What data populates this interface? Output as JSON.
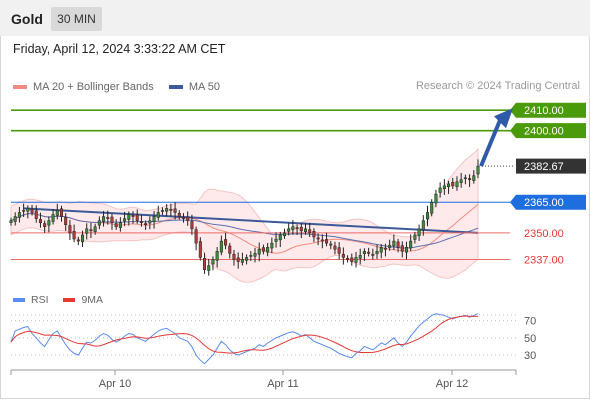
{
  "header": {
    "symbol": "Gold",
    "timeframe": "30 MIN"
  },
  "datetime": "Friday, April 12, 2024 3:33:22 AM CET",
  "legend": [
    {
      "label": "MA 20 + Bollinger Bands",
      "color": "#f28b82"
    },
    {
      "label": "MA 50",
      "color": "#3b5998"
    }
  ],
  "credit": "Research © 2024 Trading Central",
  "rsi_legend": [
    {
      "label": "RSI",
      "color": "#5b8def"
    },
    {
      "label": "9MA",
      "color": "#e53935"
    }
  ],
  "levels": [
    {
      "value": 2410.0,
      "label": "2410.00",
      "style": "resistance",
      "color": "#4a9a0a"
    },
    {
      "value": 2400.0,
      "label": "2400.00",
      "style": "resistance",
      "color": "#4a9a0a"
    },
    {
      "value": 2382.67,
      "label": "2382.67",
      "style": "last",
      "color": "#333333"
    },
    {
      "value": 2365.0,
      "label": "2365.00",
      "style": "pivot",
      "color": "#1e6ee0"
    },
    {
      "value": 2350.0,
      "label": "2350.00",
      "style": "support",
      "color": "#e53935"
    },
    {
      "value": 2337.0,
      "label": "2337.00",
      "style": "support",
      "color": "#e53935"
    }
  ],
  "chart_data": {
    "type": "candlestick",
    "price_range": [
      2326,
      2415
    ],
    "x_labels": [
      "Apr 10",
      "Apr 11",
      "Apr 12"
    ],
    "close": [
      2356,
      2358,
      2360,
      2361,
      2362,
      2360,
      2357,
      2355,
      2353,
      2356,
      2359,
      2361,
      2358,
      2354,
      2350,
      2347,
      2346,
      2349,
      2352,
      2351,
      2353,
      2356,
      2358,
      2357,
      2355,
      2353,
      2355,
      2357,
      2359,
      2358,
      2356,
      2355,
      2354,
      2356,
      2358,
      2360,
      2361,
      2362,
      2361,
      2360,
      2358,
      2357,
      2356,
      2352,
      2345,
      2338,
      2332,
      2334,
      2337,
      2341,
      2346,
      2344,
      2340,
      2337,
      2336,
      2337,
      2338,
      2339,
      2340,
      2342,
      2341,
      2343,
      2345,
      2347,
      2349,
      2350,
      2352,
      2353,
      2352,
      2351,
      2352,
      2350,
      2348,
      2347,
      2346,
      2345,
      2344,
      2342,
      2340,
      2338,
      2337,
      2336,
      2338,
      2339,
      2341,
      2340,
      2339,
      2341,
      2343,
      2342,
      2344,
      2346,
      2343,
      2341,
      2343,
      2346,
      2349,
      2352,
      2356,
      2360,
      2365,
      2369,
      2372,
      2373,
      2374,
      2373,
      2375,
      2376,
      2377,
      2376,
      2378,
      2382.67
    ],
    "rsi": [
      45,
      58,
      60,
      62,
      63,
      55,
      50,
      44,
      40,
      48,
      55,
      58,
      50,
      42,
      36,
      32,
      30,
      38,
      45,
      44,
      47,
      52,
      55,
      53,
      48,
      45,
      48,
      52,
      55,
      54,
      50,
      48,
      46,
      50,
      54,
      58,
      60,
      61,
      58,
      55,
      50,
      48,
      46,
      40,
      30,
      24,
      20,
      25,
      30,
      38,
      46,
      42,
      36,
      32,
      30,
      32,
      34,
      36,
      38,
      42,
      40,
      44,
      47,
      50,
      52,
      54,
      56,
      57,
      55,
      52,
      54,
      50,
      46,
      44,
      42,
      40,
      38,
      35,
      32,
      30,
      28,
      27,
      32,
      35,
      40,
      38,
      36,
      40,
      44,
      42,
      46,
      50,
      44,
      40,
      45,
      52,
      58,
      64,
      68,
      72,
      76,
      78,
      77,
      76,
      74,
      72,
      74,
      75,
      76,
      74,
      76,
      78
    ],
    "rsi_scale": [
      15,
      80
    ],
    "rsi_levels": [
      70,
      50,
      30
    ]
  }
}
